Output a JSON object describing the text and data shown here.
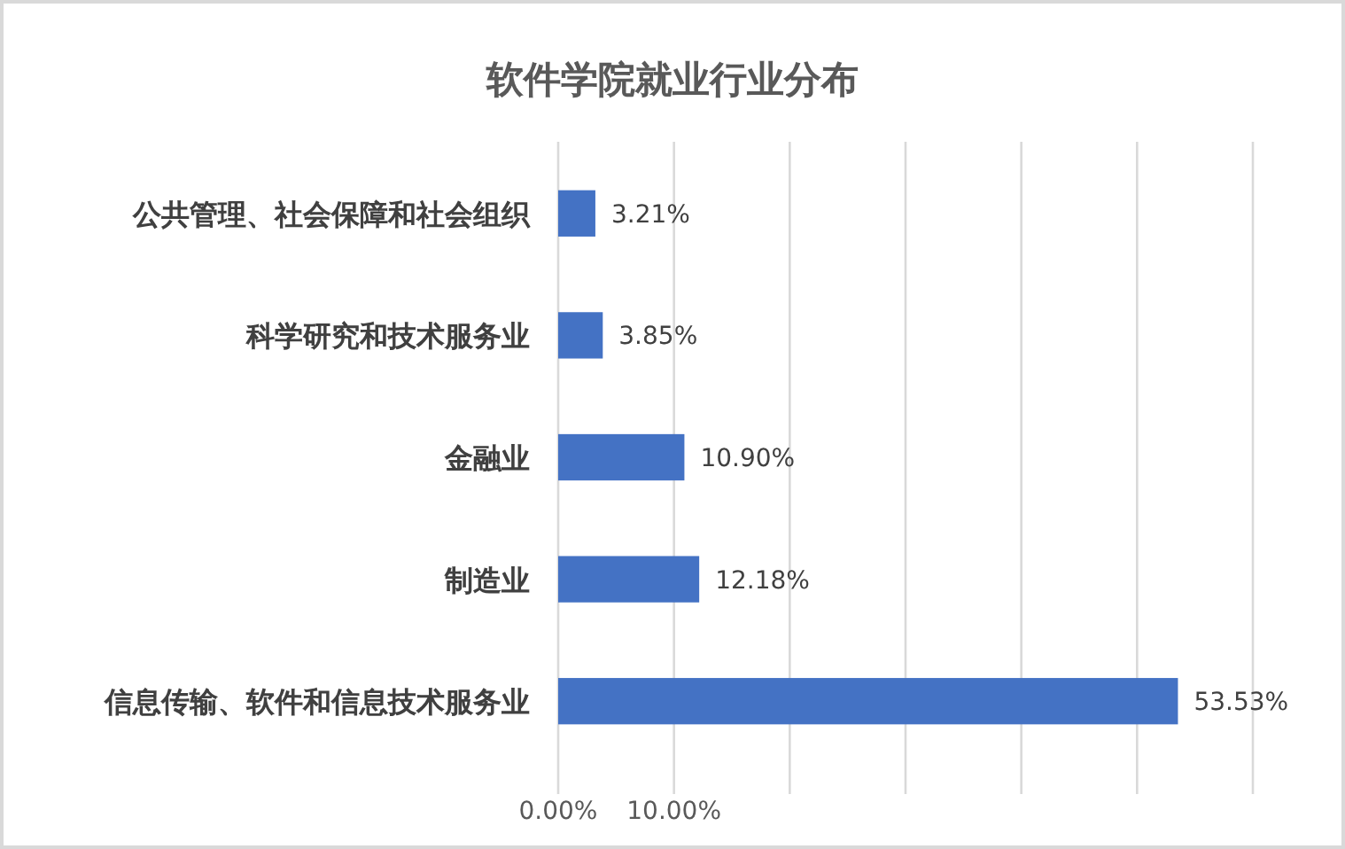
{
  "chart_data": {
    "type": "bar",
    "orientation": "horizontal",
    "title": "软件学院就业行业分布",
    "categories": [
      "公共管理、社会保障和社会组织",
      "科学研究和技术服务业",
      "金融业",
      "制造业",
      "信息传输、软件和信息技术服务业"
    ],
    "values": [
      3.21,
      3.85,
      10.9,
      12.18,
      53.53
    ],
    "value_labels": [
      "3.21%",
      "3.85%",
      "10.90%",
      "12.18%",
      "53.53%"
    ],
    "color": "#4472c4",
    "xlim": [
      0,
      60
    ],
    "xticks": [
      {
        "value": 0,
        "label": "0.00%"
      },
      {
        "value": 10,
        "label": "10.00%"
      },
      {
        "value": 20,
        "label": null
      },
      {
        "value": 30,
        "label": null
      },
      {
        "value": 40,
        "label": null
      },
      {
        "value": 50,
        "label": null
      },
      {
        "value": 60,
        "label": null
      }
    ],
    "grid": "x"
  }
}
